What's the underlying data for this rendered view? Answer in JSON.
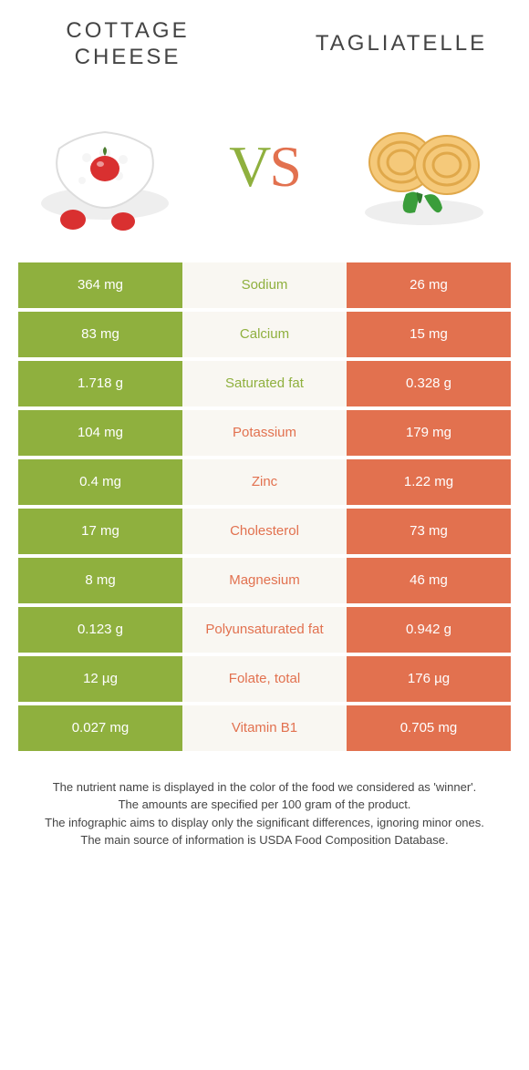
{
  "colors": {
    "green": "#8fb03e",
    "orange": "#e2714f",
    "mid_bg": "#f9f7f2",
    "title_text": "#444444"
  },
  "foods": {
    "left": {
      "name": "COTTAGE CHEESE",
      "color_key": "green"
    },
    "right": {
      "name": "TAGLIATELLE",
      "color_key": "orange"
    }
  },
  "vs_label": {
    "v": "V",
    "s": "S"
  },
  "rows": [
    {
      "nutrient": "Sodium",
      "left": "364 mg",
      "right": "26 mg",
      "winner": "left"
    },
    {
      "nutrient": "Calcium",
      "left": "83 mg",
      "right": "15 mg",
      "winner": "left"
    },
    {
      "nutrient": "Saturated fat",
      "left": "1.718 g",
      "right": "0.328 g",
      "winner": "left"
    },
    {
      "nutrient": "Potassium",
      "left": "104 mg",
      "right": "179 mg",
      "winner": "right"
    },
    {
      "nutrient": "Zinc",
      "left": "0.4 mg",
      "right": "1.22 mg",
      "winner": "right"
    },
    {
      "nutrient": "Cholesterol",
      "left": "17 mg",
      "right": "73 mg",
      "winner": "right"
    },
    {
      "nutrient": "Magnesium",
      "left": "8 mg",
      "right": "46 mg",
      "winner": "right"
    },
    {
      "nutrient": "Polyunsaturated fat",
      "left": "0.123 g",
      "right": "0.942 g",
      "winner": "right"
    },
    {
      "nutrient": "Folate, total",
      "left": "12 µg",
      "right": "176 µg",
      "winner": "right"
    },
    {
      "nutrient": "Vitamin B1",
      "left": "0.027 mg",
      "right": "0.705 mg",
      "winner": "right"
    }
  ],
  "footnotes": [
    "The nutrient name is displayed in the color of the food we considered as 'winner'.",
    "The amounts are specified per 100 gram of the product.",
    "The infographic aims to display only the significant differences, ignoring minor ones.",
    "The main source of information is USDA Food Composition Database."
  ]
}
